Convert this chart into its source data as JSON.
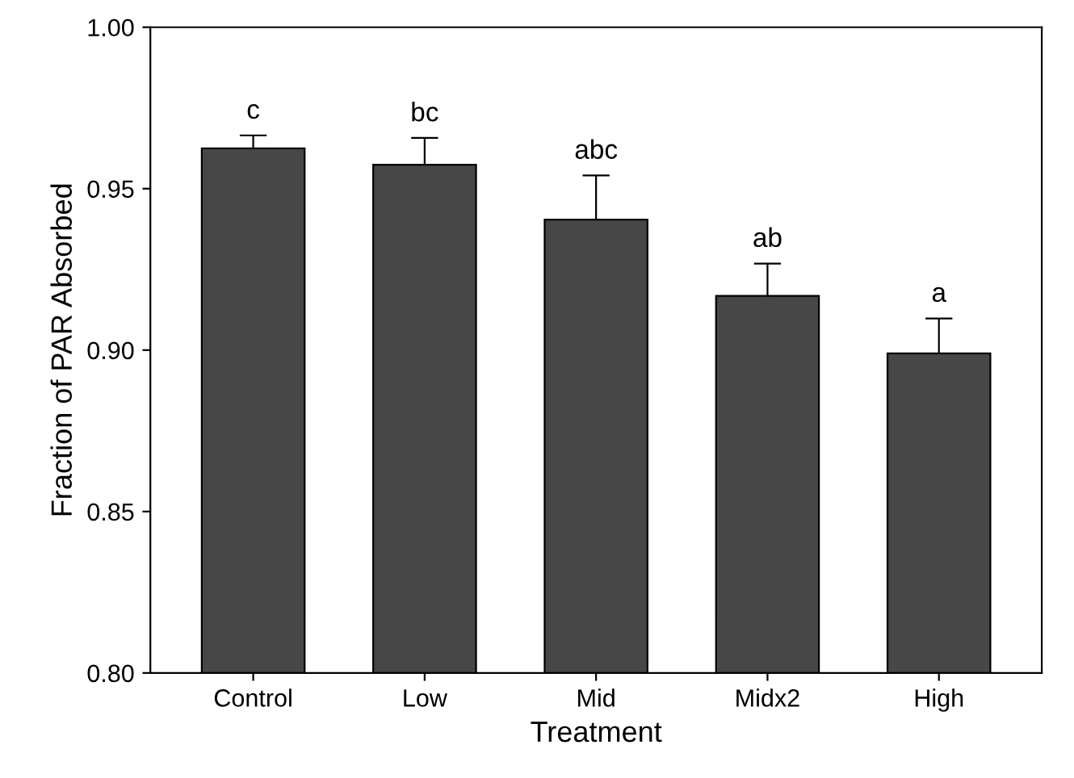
{
  "chart_data": {
    "type": "bar",
    "xlabel": "Treatment",
    "ylabel": "Fraction of PAR Absorbed",
    "categories": [
      "Control",
      "Low",
      "Mid",
      "Midx2",
      "High"
    ],
    "values": [
      0.9625,
      0.9574,
      0.9404,
      0.9168,
      0.899
    ],
    "errors": [
      0.004,
      0.0083,
      0.0137,
      0.01,
      0.0108
    ],
    "color": "#474747",
    "annotations": [
      "c",
      "bc",
      "abc",
      "ab",
      "a"
    ],
    "ylim": [
      0.8,
      1.0
    ],
    "yticks": [
      {
        "value": 0.8,
        "label": "0.80"
      },
      {
        "value": 0.85,
        "label": "0.85"
      },
      {
        "value": 0.9,
        "label": "0.90"
      },
      {
        "value": 0.95,
        "label": "0.95"
      },
      {
        "value": 1.0,
        "label": "1.00"
      }
    ],
    "grid": false
  }
}
